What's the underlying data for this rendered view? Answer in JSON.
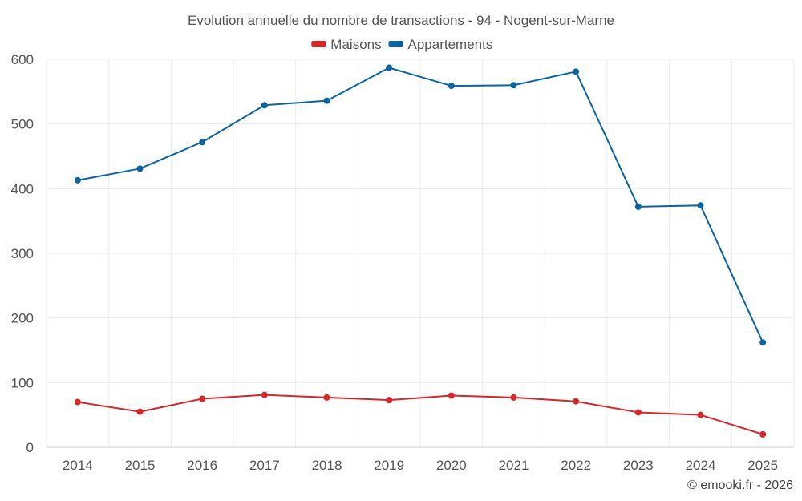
{
  "chart_data": {
    "type": "line",
    "title": "Evolution annuelle du nombre de transactions - 94 - Nogent-sur-Marne",
    "categories": [
      "2014",
      "2015",
      "2016",
      "2017",
      "2018",
      "2019",
      "2020",
      "2021",
      "2022",
      "2023",
      "2024",
      "2025"
    ],
    "series": [
      {
        "name": "Maisons",
        "color": "#d62728",
        "values": [
          70,
          55,
          75,
          81,
          77,
          73,
          80,
          77,
          71,
          54,
          50,
          20
        ]
      },
      {
        "name": "Appartements",
        "color": "#0a64a0",
        "values": [
          413,
          431,
          472,
          529,
          536,
          587,
          559,
          560,
          581,
          372,
          374,
          162
        ]
      }
    ],
    "ylim": [
      0,
      600
    ],
    "yticks": [
      0,
      100,
      200,
      300,
      400,
      500,
      600
    ],
    "xlabel": "",
    "ylabel": "",
    "grid": true,
    "legend_position": "top-center"
  },
  "credit": "© emooki.fr - 2026"
}
